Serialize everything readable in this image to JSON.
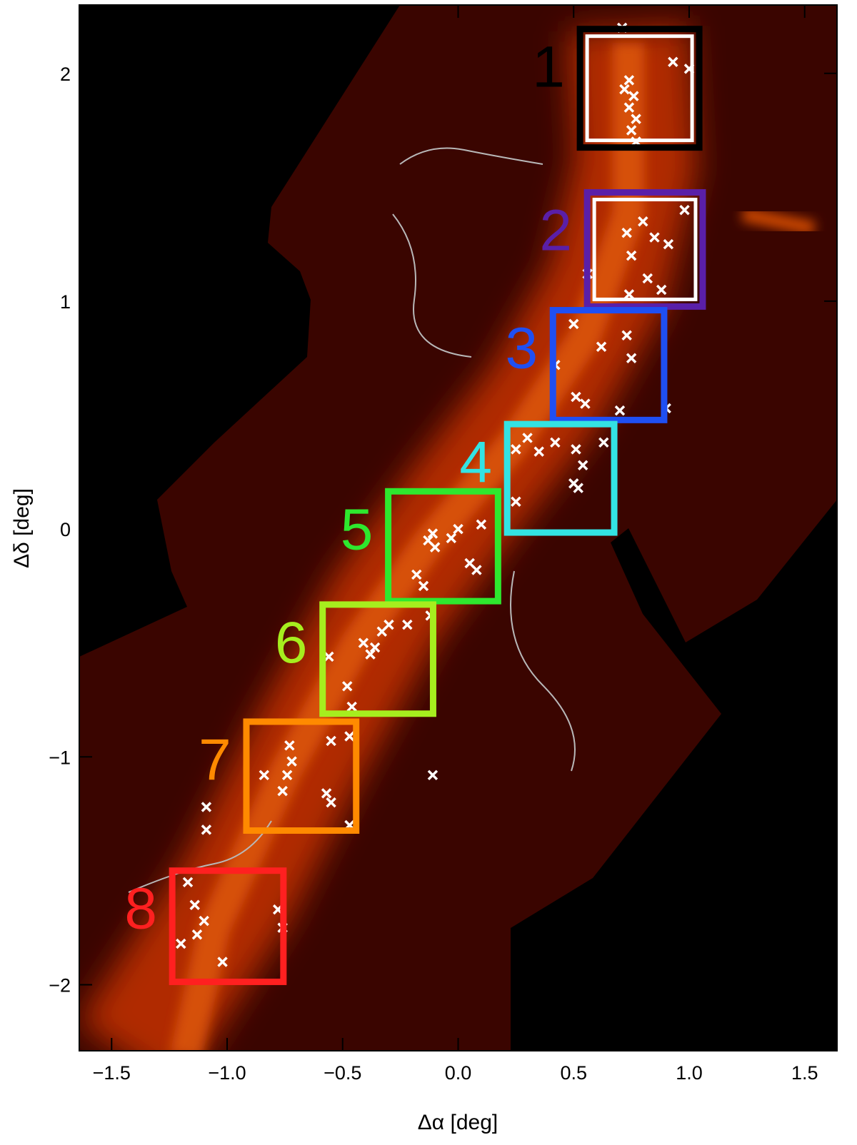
{
  "chart_data": {
    "type": "image",
    "xlabel": "Δα [deg]",
    "ylabel": "Δδ [deg]",
    "xlim": [
      -1.64,
      1.64
    ],
    "ylim": [
      -2.29,
      2.3
    ],
    "xticks": [
      {
        "value": -1.5,
        "label": "−1.5"
      },
      {
        "value": -1.0,
        "label": "−1.0"
      },
      {
        "value": -0.5,
        "label": "−0.5"
      },
      {
        "value": 0,
        "label": "0.0"
      },
      0.5,
      {
        "value": 1.0,
        "label": "1.0"
      },
      1.5
    ],
    "yticks": [
      {
        "value": -2,
        "label": "−2"
      },
      {
        "value": -1,
        "label": "−1"
      },
      0,
      1,
      2
    ],
    "regions": [
      {
        "label": "1",
        "color": "#000000",
        "inner_color": "#ffffff",
        "x": [
          0.515,
          1.056
        ],
        "y": [
          1.662,
          2.207
        ]
      },
      {
        "label": "2",
        "color": "#5a1fa8",
        "inner_color": "#ffffff",
        "x": [
          0.546,
          1.071
        ],
        "y": [
          0.964,
          1.49
        ]
      },
      {
        "label": "3",
        "color": "#1f4ff2",
        "x": [
          0.398,
          0.904
        ],
        "y": [
          0.466,
          0.973
        ]
      },
      {
        "label": "4",
        "color": "#33e3e3",
        "x": [
          0.2,
          0.688
        ],
        "y": [
          -0.028,
          0.473
        ]
      },
      {
        "label": "5",
        "color": "#2ee82e",
        "x": [
          -0.315,
          0.185
        ],
        "y": [
          -0.329,
          0.178
        ]
      },
      {
        "label": "6",
        "color": "#a6ee1e",
        "x": [
          -0.599,
          -0.096
        ],
        "y": [
          -0.823,
          -0.319
        ]
      },
      {
        "label": "7",
        "color": "#ff8a00",
        "x": [
          -0.929,
          -0.429
        ],
        "y": [
          -1.336,
          -0.833
        ]
      },
      {
        "label": "8",
        "color": "#ff2020",
        "x": [
          -1.25,
          -0.744
        ],
        "y": [
          -2.0,
          -1.487
        ]
      }
    ],
    "sources": {
      "color": "#ffffff",
      "x": [
        0.74,
        0.76,
        0.74,
        0.77,
        0.75,
        0.77,
        0.93,
        1.0,
        0.71,
        0.72,
        0.8,
        0.85,
        0.91,
        0.73,
        0.75,
        0.82,
        0.88,
        0.74,
        0.56,
        0.98,
        0.5,
        0.62,
        0.73,
        0.75,
        0.42,
        0.51,
        0.55,
        0.7,
        0.9,
        0.3,
        0.25,
        0.35,
        0.42,
        0.51,
        0.54,
        0.5,
        0.52,
        0.63,
        0.25,
        -0.13,
        -0.11,
        -0.1,
        0.0,
        0.1,
        0.05,
        -0.18,
        -0.15,
        0.08,
        -0.03,
        -0.41,
        -0.38,
        -0.36,
        -0.33,
        -0.3,
        -0.22,
        -0.12,
        -0.56,
        -0.48,
        -0.46,
        -0.73,
        -0.72,
        -0.74,
        -0.76,
        -0.57,
        -0.55,
        -0.84,
        -0.55,
        -0.47,
        -0.47,
        -0.11,
        -1.09,
        -1.09,
        -1.17,
        -1.14,
        -1.1,
        -1.13,
        -1.2,
        -0.78,
        -0.76,
        -1.02
      ],
      "y": [
        1.97,
        1.9,
        1.85,
        1.8,
        1.75,
        1.7,
        2.05,
        2.02,
        2.2,
        1.93,
        1.35,
        1.28,
        1.25,
        1.3,
        1.2,
        1.1,
        1.05,
        1.03,
        1.12,
        1.4,
        0.9,
        0.8,
        0.85,
        0.75,
        0.72,
        0.58,
        0.55,
        0.52,
        0.53,
        0.4,
        0.35,
        0.34,
        0.38,
        0.35,
        0.28,
        0.2,
        0.18,
        0.38,
        0.12,
        -0.05,
        -0.02,
        -0.08,
        0.0,
        0.02,
        -0.15,
        -0.2,
        -0.25,
        -0.18,
        -0.04,
        -0.5,
        -0.55,
        -0.52,
        -0.45,
        -0.42,
        -0.42,
        -0.38,
        -0.56,
        -0.69,
        -0.78,
        -0.95,
        -1.02,
        -1.08,
        -1.15,
        -1.16,
        -1.2,
        -1.08,
        -0.93,
        -0.91,
        -1.3,
        -1.08,
        -1.22,
        -1.32,
        -1.55,
        -1.65,
        -1.72,
        -1.78,
        -1.82,
        -1.67,
        -1.75,
        -1.9
      ]
    }
  }
}
